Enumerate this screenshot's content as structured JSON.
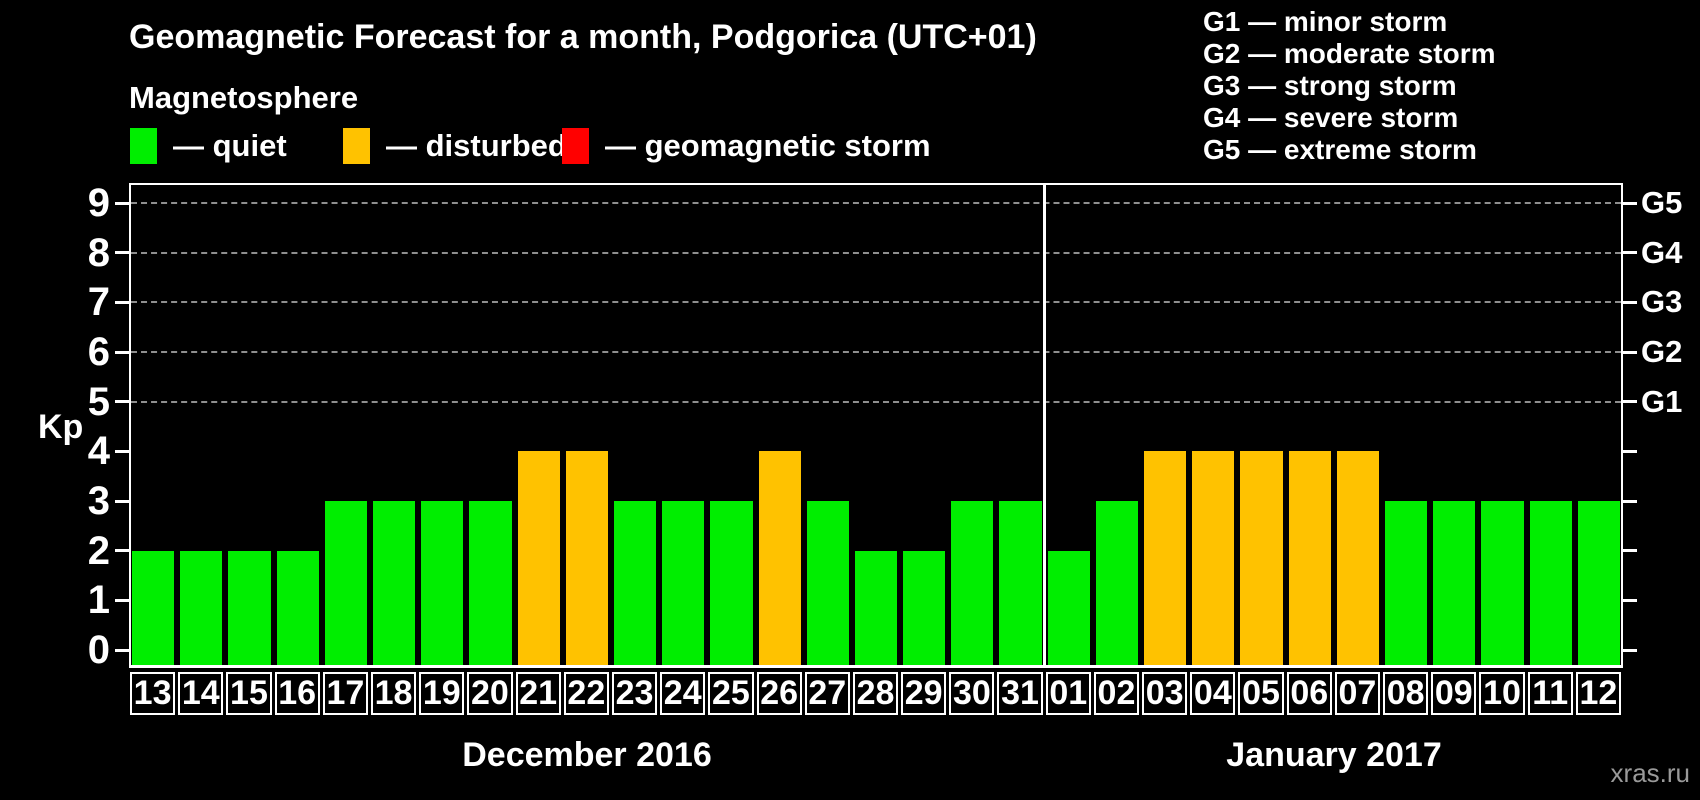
{
  "title": "Geomagnetic Forecast for a month, Podgorica (UTC+01)",
  "legend": {
    "heading": "Magnetosphere",
    "items": [
      {
        "name": "quiet",
        "label": "— quiet",
        "color": "#00ee00"
      },
      {
        "name": "disturbed",
        "label": "— disturbed",
        "color": "#ffc200"
      },
      {
        "name": "storm",
        "label": "— geomagnetic storm",
        "color": "#ff0000"
      }
    ]
  },
  "g_scale_legend": [
    "G1 — minor storm",
    "G2 — moderate storm",
    "G3 — strong storm",
    "G4 — severe storm",
    "G5 — extreme storm"
  ],
  "watermark": "xras.ru",
  "chart_data": {
    "type": "bar",
    "title": "Geomagnetic Forecast for a month, Podgorica (UTC+01)",
    "ylabel": "Kp",
    "ylim": [
      0,
      9
    ],
    "y_ticks": [
      0,
      1,
      2,
      3,
      4,
      5,
      6,
      7,
      8,
      9
    ],
    "gridlines_at_kp": [
      5,
      6,
      7,
      8,
      9
    ],
    "grid_color": "#8f8f8f",
    "right_axis": [
      {
        "kp": 5,
        "label": "G1"
      },
      {
        "kp": 6,
        "label": "G2"
      },
      {
        "kp": 7,
        "label": "G3"
      },
      {
        "kp": 8,
        "label": "G4"
      },
      {
        "kp": 9,
        "label": "G5"
      }
    ],
    "status_colors": {
      "quiet": "#00ee00",
      "disturbed": "#ffc200",
      "storm": "#ff0000"
    },
    "groups": [
      {
        "label": "December 2016",
        "days": [
          "13",
          "14",
          "15",
          "16",
          "17",
          "18",
          "19",
          "20",
          "21",
          "22",
          "23",
          "24",
          "25",
          "26",
          "27",
          "28",
          "29",
          "30",
          "31"
        ],
        "values": [
          2,
          2,
          2,
          2,
          3,
          3,
          3,
          3,
          4,
          4,
          3,
          3,
          3,
          4,
          3,
          2,
          2,
          3,
          3
        ],
        "status": [
          "quiet",
          "quiet",
          "quiet",
          "quiet",
          "quiet",
          "quiet",
          "quiet",
          "quiet",
          "disturbed",
          "disturbed",
          "quiet",
          "quiet",
          "quiet",
          "disturbed",
          "quiet",
          "quiet",
          "quiet",
          "quiet",
          "quiet"
        ]
      },
      {
        "label": "January 2017",
        "days": [
          "01",
          "02",
          "03",
          "04",
          "05",
          "06",
          "07",
          "08",
          "09",
          "10",
          "11",
          "12"
        ],
        "values": [
          2,
          3,
          4,
          4,
          4,
          4,
          4,
          3,
          3,
          3,
          3,
          3
        ],
        "status": [
          "quiet",
          "quiet",
          "disturbed",
          "disturbed",
          "disturbed",
          "disturbed",
          "disturbed",
          "quiet",
          "quiet",
          "quiet",
          "quiet",
          "quiet"
        ]
      }
    ]
  }
}
